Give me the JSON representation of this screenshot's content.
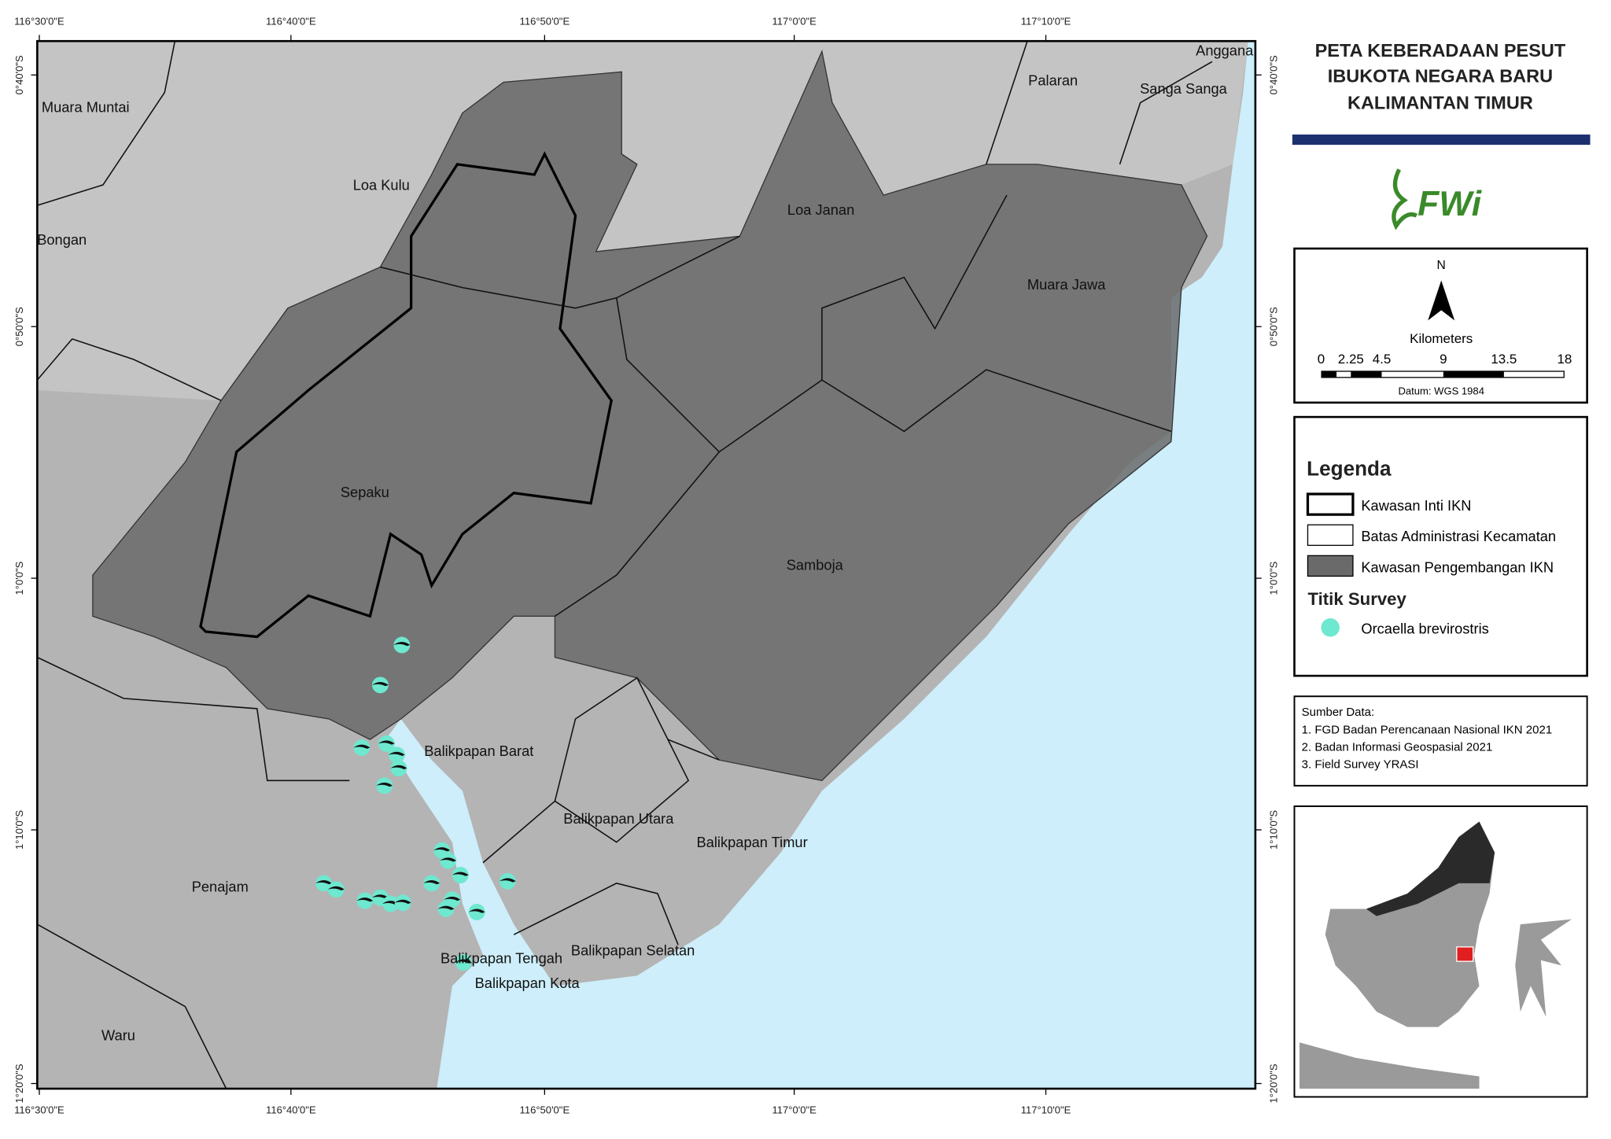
{
  "title": [
    "PETA KEBERADAAN PESUT",
    "IBUKOTA NEGARA BARU",
    "KALIMANTAN TIMUR"
  ],
  "longitude_labels": [
    "116°30'0\"E",
    "116°40'0\"E",
    "116°50'0\"E",
    "117°0'0\"E",
    "117°10'0\"E"
  ],
  "latitude_labels": [
    "0°40'0\"S",
    "0°50'0\"S",
    "1°0'0\"S",
    "1°10'0\"S",
    "1°20'0\"S"
  ],
  "places": [
    "Anggana",
    "Palaran",
    "Sanga Sanga",
    "Muara Muntai",
    "Loa Kulu",
    "Loa Janan",
    "Bongan",
    "Muara Jawa",
    "Sepaku",
    "Samboja",
    "Balikpapan Barat",
    "Balikpapan Utara",
    "Balikpapan Timur",
    "Penajam",
    "Balikpapan Tengah",
    "Balikpapan Selatan",
    "Balikpapan Kota",
    "Waru"
  ],
  "logo": "FWi",
  "north": "N",
  "scale": {
    "unit": "Kilometers",
    "labels": [
      "0",
      "2.25",
      "4.5",
      "9",
      "13.5",
      "18"
    ],
    "datum": "Datum:  WGS 1984"
  },
  "legend": {
    "title": "Legenda",
    "items": [
      "Kawasan Inti IKN",
      "Batas Administrasi Kecamatan",
      "Kawasan Pengembangan IKN"
    ],
    "survey_title": "Titik Survey",
    "survey_item": "Orcaella brevirostris"
  },
  "sources": {
    "title": "Sumber Data:",
    "items": [
      "1. FGD Badan Perencanaan Nasional IKN 2021",
      "2. Badan Informasi Geospasial 2021",
      "3. Field Survey YRASI"
    ]
  }
}
